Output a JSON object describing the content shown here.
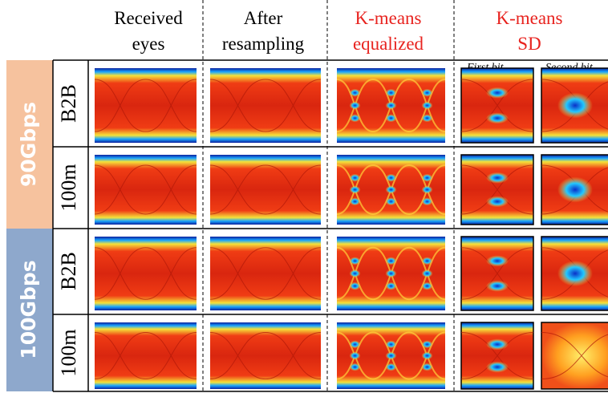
{
  "columns": [
    {
      "lines": [
        "Received",
        "eyes"
      ]
    },
    {
      "lines": [
        "After",
        "resampling"
      ]
    },
    {
      "lines": [
        "K-means",
        "equalized"
      ]
    },
    {
      "lines": [
        "K-means",
        "SD"
      ]
    }
  ],
  "sublabels": [
    "First bit",
    "Second bit"
  ],
  "groups": [
    {
      "label": "90Gbps",
      "rows": [
        "B2B",
        "100m"
      ]
    },
    {
      "label": "100Gbps",
      "rows": [
        "B2B",
        "100m"
      ]
    }
  ]
}
